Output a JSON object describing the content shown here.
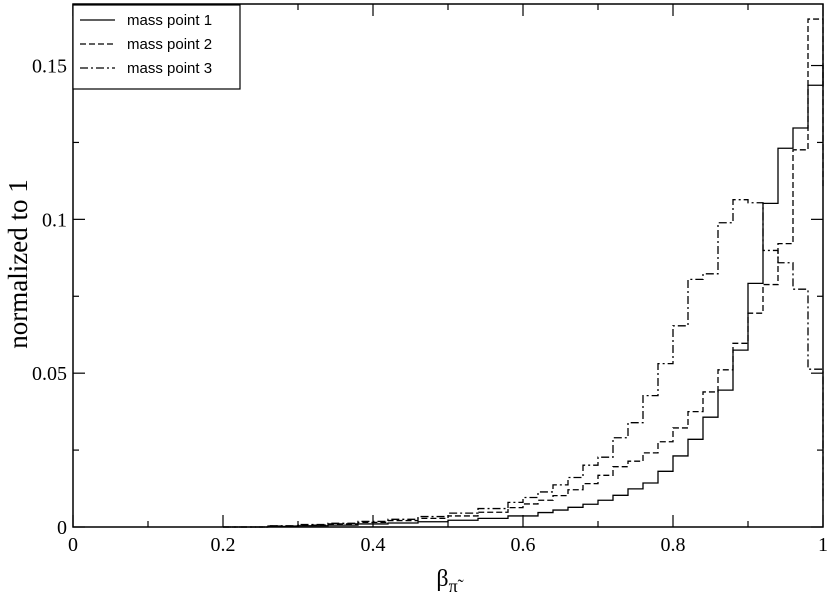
{
  "chart_data": {
    "type": "line",
    "step": true,
    "xlabel": "β",
    "xlabel_sub": "π̃",
    "ylabel": "normalized to 1",
    "xlim": [
      0,
      1
    ],
    "ylim": [
      0,
      0.17
    ],
    "x_major_ticks": [
      0,
      0.2,
      0.4,
      0.6,
      0.8,
      1
    ],
    "x_tick_labels": [
      "0",
      "0.2",
      "0.4",
      "0.6",
      "0.8",
      "1"
    ],
    "y_major_ticks": [
      0,
      0.05,
      0.1,
      0.15
    ],
    "y_tick_labels": [
      "0",
      "0.05",
      "0.1",
      "0.15"
    ],
    "legend_position": "top-left",
    "series": [
      {
        "name": "mass point 1",
        "dash": "solid",
        "color": "#000000",
        "x": [
          0.2,
          0.26,
          0.3,
          0.34,
          0.38,
          0.42,
          0.46,
          0.5,
          0.54,
          0.58,
          0.62,
          0.64,
          0.66,
          0.68,
          0.7,
          0.72,
          0.74,
          0.76,
          0.78,
          0.8,
          0.82,
          0.84,
          0.86,
          0.88,
          0.9,
          0.92,
          0.94,
          0.96,
          0.98,
          1.0
        ],
        "y": [
          0.0,
          0.0002,
          0.0004,
          0.0006,
          0.001,
          0.0013,
          0.0017,
          0.0022,
          0.0028,
          0.0036,
          0.0047,
          0.0055,
          0.0064,
          0.0074,
          0.0087,
          0.0103,
          0.0124,
          0.0143,
          0.0181,
          0.0231,
          0.0285,
          0.0357,
          0.0445,
          0.0575,
          0.0792,
          0.1052,
          0.1231,
          0.1297,
          0.1436,
          0.1502
        ]
      },
      {
        "name": "mass point 2",
        "dash": "dashed",
        "color": "#000000",
        "x": [
          0.2,
          0.26,
          0.3,
          0.34,
          0.38,
          0.42,
          0.46,
          0.5,
          0.54,
          0.58,
          0.6,
          0.62,
          0.64,
          0.66,
          0.68,
          0.7,
          0.72,
          0.74,
          0.76,
          0.78,
          0.8,
          0.82,
          0.84,
          0.86,
          0.88,
          0.9,
          0.92,
          0.94,
          0.96,
          0.98,
          1.0
        ],
        "y": [
          0.0,
          0.0003,
          0.0006,
          0.001,
          0.0015,
          0.0021,
          0.0028,
          0.0036,
          0.0048,
          0.0063,
          0.0075,
          0.0087,
          0.0102,
          0.0121,
          0.0141,
          0.0168,
          0.0196,
          0.0214,
          0.0241,
          0.0277,
          0.0322,
          0.0375,
          0.0439,
          0.0511,
          0.0597,
          0.0695,
          0.0788,
          0.0921,
          0.1226,
          0.1651,
          0.1104
        ]
      },
      {
        "name": "mass point 3",
        "dash": "dash-dot",
        "color": "#000000",
        "x": [
          0.2,
          0.26,
          0.3,
          0.34,
          0.38,
          0.42,
          0.46,
          0.5,
          0.54,
          0.58,
          0.6,
          0.62,
          0.64,
          0.66,
          0.68,
          0.7,
          0.72,
          0.74,
          0.76,
          0.78,
          0.8,
          0.82,
          0.84,
          0.86,
          0.88,
          0.9,
          0.92,
          0.94,
          0.96,
          0.98,
          1.0
        ],
        "y": [
          0.0,
          0.0004,
          0.0008,
          0.0012,
          0.0018,
          0.0025,
          0.0034,
          0.0045,
          0.006,
          0.008,
          0.0096,
          0.0114,
          0.0137,
          0.0161,
          0.0201,
          0.0227,
          0.029,
          0.0339,
          0.0427,
          0.0531,
          0.0654,
          0.0805,
          0.0823,
          0.0989,
          0.1064,
          0.1054,
          0.0899,
          0.0859,
          0.0773,
          0.0513,
          0.0086
        ]
      }
    ]
  }
}
